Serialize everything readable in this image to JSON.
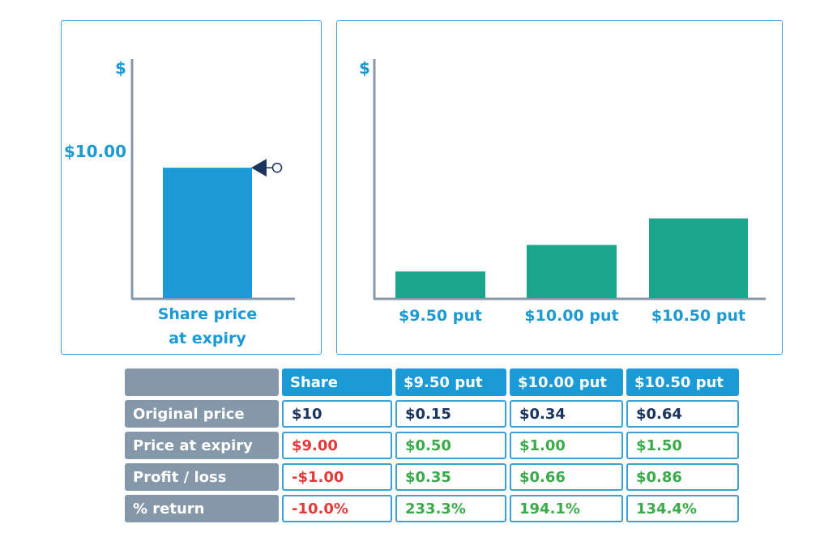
{
  "colors": {
    "accent_blue": "#1c9ad6",
    "put_bar_green": "#19a68c",
    "axis_gray": "#8598a9",
    "marker_navy": "#1b355e",
    "loss_red": "#e03a3a",
    "gain_green": "#3aaa4a"
  },
  "chart_data": [
    {
      "type": "bar",
      "title": "",
      "ylabel": "$",
      "xlabel": "Share price\nat expiry",
      "xlabel_lines": [
        "Share price",
        "at expiry"
      ],
      "categories": [
        "Share price at expiry"
      ],
      "values": [
        9.0
      ],
      "ylim": [
        0,
        16.5
      ],
      "reference": {
        "label": "$10.00",
        "value": 10.0,
        "marker": "left-pointing-triangle-with-circle"
      },
      "grid": false,
      "legend": "none"
    },
    {
      "type": "bar",
      "title": "",
      "ylabel": "$",
      "xlabel": "",
      "categories": [
        "$9.50 put",
        "$10.00 put",
        "$10.50 put"
      ],
      "values": [
        0.5,
        1.0,
        1.5
      ],
      "ylim": [
        0,
        4.5
      ],
      "grid": false,
      "legend": "none"
    }
  ],
  "table": {
    "columns": [
      "",
      "Share",
      "$9.50 put",
      "$10.00 put",
      "$10.50 put"
    ],
    "rows": [
      {
        "label": "Original price",
        "values": [
          "$10",
          "$0.15",
          "$0.34",
          "$0.64"
        ],
        "tones": [
          "navy",
          "navy",
          "navy",
          "navy"
        ]
      },
      {
        "label": "Price at expiry",
        "values": [
          "$9.00",
          "$0.50",
          "$1.00",
          "$1.50"
        ],
        "tones": [
          "red",
          "green",
          "green",
          "green"
        ]
      },
      {
        "label": "Profit / loss",
        "values": [
          "-$1.00",
          "$0.35",
          "$0.66",
          "$0.86"
        ],
        "tones": [
          "red",
          "green",
          "green",
          "green"
        ]
      },
      {
        "label": "% return",
        "values": [
          "-10.0%",
          "233.3%",
          "194.1%",
          "134.4%"
        ],
        "tones": [
          "red",
          "green",
          "green",
          "green"
        ]
      }
    ]
  }
}
